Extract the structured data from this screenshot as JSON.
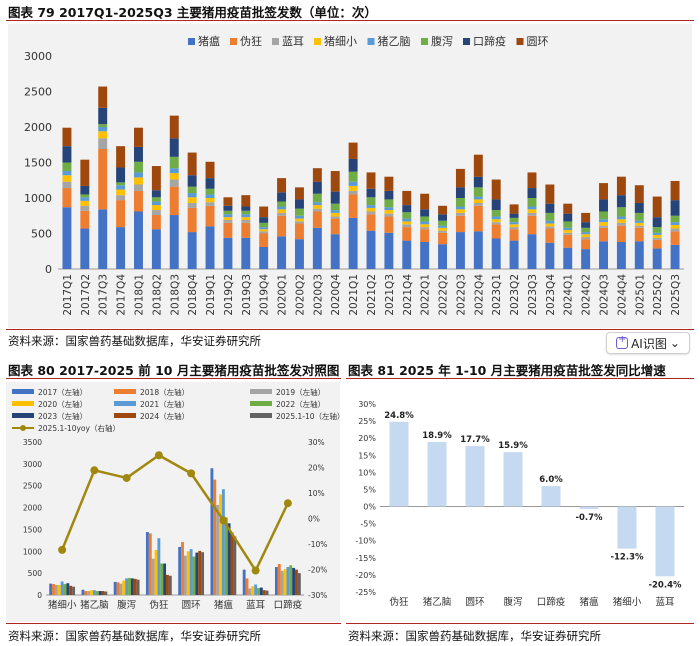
{
  "fig79": {
    "title": "图表 79 2017Q1-2025Q3 主要猪用疫苗批签发数（单位：次）",
    "source": "资料来源：国家兽药基础数据库，华安证券研究所"
  },
  "fig80": {
    "title": "图表 80 2017-2025 前 10 月主要猪用疫苗批签发对照图",
    "source": "资料来源：国家兽药基础数据库，华安证券研究所"
  },
  "fig81": {
    "title": "图表 81 2025 年 1-10 月主要猪用疫苗批签发同比增速",
    "source": "资料来源：国家兽药基础数据库，华安证券研究所"
  },
  "ai_button": {
    "label": "AI识图",
    "icon": "ai-scan-icon",
    "chevron": "⌄"
  },
  "chart_data": [
    {
      "id": "fig79",
      "type": "bar",
      "stacked": true,
      "title": "2017Q1-2025Q3 主要猪用疫苗批签发数（单位：次）",
      "ylim": [
        0,
        3000
      ],
      "yticks": [
        0,
        500,
        1000,
        1500,
        2000,
        2500,
        3000
      ],
      "legend_position": "top",
      "categories": [
        "2017Q1",
        "2017Q2",
        "2017Q3",
        "2017Q4",
        "2018Q1",
        "2018Q2",
        "2018Q3",
        "2018Q4",
        "2019Q1",
        "2019Q2",
        "2019Q3",
        "2019Q4",
        "2020Q1",
        "2020Q2",
        "2020Q3",
        "2020Q4",
        "2021Q1",
        "2021Q2",
        "2021Q3",
        "2021Q4",
        "2022Q1",
        "2022Q2",
        "2022Q3",
        "2022Q4",
        "2023Q1",
        "2023Q2",
        "2023Q3",
        "2023Q4",
        "2024Q1",
        "2024Q2",
        "2024Q3",
        "2024Q4",
        "2025Q1",
        "2025Q2",
        "2025Q3"
      ],
      "series": [
        {
          "name": "猪瘟",
          "color": "#4472c4",
          "values": [
            870,
            570,
            840,
            590,
            810,
            560,
            760,
            520,
            600,
            440,
            440,
            310,
            460,
            420,
            580,
            490,
            720,
            540,
            510,
            400,
            380,
            350,
            520,
            530,
            430,
            400,
            490,
            370,
            300,
            280,
            390,
            380,
            390,
            290,
            340
          ]
        },
        {
          "name": "伪狂",
          "color": "#ed7d31",
          "values": [
            270,
            250,
            850,
            380,
            290,
            200,
            400,
            340,
            290,
            210,
            210,
            190,
            290,
            220,
            230,
            220,
            330,
            230,
            230,
            190,
            180,
            160,
            230,
            360,
            200,
            160,
            260,
            200,
            180,
            140,
            190,
            230,
            190,
            120,
            190
          ]
        },
        {
          "name": "蓝耳",
          "color": "#a5a5a5",
          "values": [
            90,
            70,
            150,
            70,
            90,
            70,
            100,
            70,
            50,
            40,
            40,
            30,
            40,
            30,
            40,
            30,
            50,
            40,
            40,
            40,
            30,
            30,
            40,
            40,
            30,
            30,
            40,
            30,
            30,
            30,
            30,
            40,
            30,
            30,
            40
          ]
        },
        {
          "name": "猪细小",
          "color": "#ffc000",
          "values": [
            90,
            70,
            100,
            80,
            100,
            70,
            90,
            80,
            60,
            40,
            40,
            30,
            50,
            40,
            50,
            50,
            70,
            50,
            50,
            40,
            40,
            40,
            50,
            50,
            40,
            40,
            50,
            40,
            40,
            40,
            50,
            50,
            40,
            40,
            50
          ]
        },
        {
          "name": "猪乙脑",
          "color": "#5b9bd5",
          "values": [
            60,
            50,
            60,
            60,
            70,
            50,
            70,
            60,
            50,
            40,
            40,
            30,
            40,
            40,
            40,
            40,
            60,
            40,
            40,
            40,
            40,
            30,
            40,
            40,
            40,
            30,
            40,
            40,
            30,
            30,
            40,
            40,
            30,
            30,
            40
          ]
        },
        {
          "name": "腹泻",
          "color": "#70ad47",
          "values": [
            120,
            40,
            40,
            40,
            150,
            60,
            160,
            90,
            80,
            50,
            50,
            60,
            70,
            100,
            120,
            90,
            140,
            110,
            110,
            90,
            70,
            70,
            120,
            130,
            90,
            60,
            120,
            110,
            90,
            60,
            110,
            130,
            110,
            80,
            90
          ]
        },
        {
          "name": "口蹄疫",
          "color": "#264478",
          "values": [
            230,
            120,
            230,
            210,
            210,
            100,
            260,
            160,
            150,
            70,
            60,
            80,
            130,
            130,
            170,
            170,
            180,
            120,
            120,
            100,
            100,
            90,
            150,
            150,
            150,
            60,
            140,
            130,
            110,
            80,
            170,
            170,
            140,
            140,
            220
          ]
        },
        {
          "name": "圆环",
          "color": "#9e480e",
          "values": [
            260,
            370,
            300,
            300,
            270,
            340,
            320,
            320,
            230,
            120,
            160,
            150,
            200,
            170,
            190,
            290,
            230,
            230,
            200,
            200,
            220,
            120,
            260,
            310,
            280,
            130,
            220,
            270,
            140,
            130,
            230,
            260,
            250,
            290,
            270
          ]
        }
      ]
    },
    {
      "id": "fig80",
      "type": "bar",
      "title": "2017-2025 前 10 月主要猪用疫苗批签发对照图",
      "categories": [
        "猪细小",
        "猪乙脑",
        "腹泻",
        "伪狂",
        "圆环",
        "猪瘟",
        "蓝耳",
        "口蹄疫"
      ],
      "ylim_left": [
        0,
        3500
      ],
      "yticks_left": [
        0,
        500,
        1000,
        1500,
        2000,
        2500,
        3000,
        3500
      ],
      "ylim_right": [
        -30,
        30
      ],
      "yticks_right": [
        -30,
        -20,
        -10,
        0,
        10,
        20,
        30
      ],
      "yticks_right_labels": [
        "-30%",
        "-20%",
        "-10%",
        "0%",
        "10%",
        "20%",
        "30%"
      ],
      "legend_position": "top",
      "series": [
        {
          "name": "2017（左轴）",
          "color": "#4472c4",
          "values": [
            260,
            120,
            300,
            1440,
            1100,
            2900,
            580,
            640
          ]
        },
        {
          "name": "2018（左轴）",
          "color": "#ed7d31",
          "values": [
            250,
            90,
            290,
            1410,
            1210,
            2640,
            380,
            710
          ]
        },
        {
          "name": "2019（左轴）",
          "color": "#a5a5a5",
          "values": [
            230,
            90,
            260,
            830,
            900,
            2060,
            150,
            550
          ]
        },
        {
          "name": "2020（左轴）",
          "color": "#ffc000",
          "values": [
            230,
            110,
            330,
            1030,
            1000,
            2300,
            200,
            590
          ]
        },
        {
          "name": "2021（左轴）",
          "color": "#5b9bd5",
          "values": [
            310,
            110,
            380,
            1300,
            1050,
            2420,
            240,
            640
          ]
        },
        {
          "name": "2022（左轴）",
          "color": "#70ad47",
          "values": [
            250,
            90,
            390,
            720,
            880,
            1770,
            160,
            680
          ]
        },
        {
          "name": "2023（左轴）",
          "color": "#264478",
          "values": [
            270,
            90,
            380,
            720,
            970,
            1640,
            170,
            620
          ]
        },
        {
          "name": "2024（左轴）",
          "color": "#9e480e",
          "values": [
            210,
            90,
            370,
            460,
            1010,
            1430,
            110,
            580
          ]
        },
        {
          "name": "2025.1-10（左轴）",
          "color": "#636363",
          "values": [
            190,
            80,
            350,
            440,
            980,
            1340,
            100,
            500
          ]
        }
      ],
      "line": {
        "name": "2025.1-10yoy（右轴）",
        "color": "#a0880e",
        "values": [
          -12.3,
          18.9,
          15.9,
          24.8,
          17.7,
          -0.7,
          -20.4,
          6.0
        ]
      }
    },
    {
      "id": "fig81",
      "type": "bar",
      "title": "2025 年 1-10 月主要猪用疫苗批签发同比增速",
      "categories": [
        "伪狂",
        "猪乙脑",
        "圆环",
        "腹泻",
        "口蹄疫",
        "猪瘟",
        "猪细小",
        "蓝耳"
      ],
      "values": [
        24.8,
        18.9,
        17.7,
        15.9,
        6.0,
        -0.7,
        -12.3,
        -20.4
      ],
      "labels": [
        "24.8%",
        "18.9%",
        "17.7%",
        "15.9%",
        "6.0%",
        "-0.7%",
        "-12.3%",
        "-20.4%"
      ],
      "color": "#c5d9f1",
      "ylim": [
        -25,
        30
      ],
      "yticks": [
        -25,
        -20,
        -15,
        -10,
        -5,
        0,
        5,
        10,
        15,
        20,
        25,
        30
      ],
      "yticks_labels": [
        "-25%",
        "-20%",
        "-15%",
        "-10%",
        "-5%",
        "0%",
        "5%",
        "10%",
        "15%",
        "20%",
        "25%",
        "30%"
      ]
    }
  ]
}
